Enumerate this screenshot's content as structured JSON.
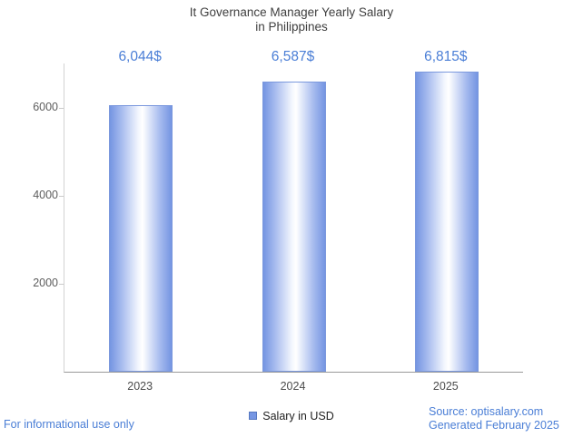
{
  "title": {
    "line1": "It Governance Manager Yearly Salary",
    "line2": "in Philippines"
  },
  "chart_data": {
    "type": "bar",
    "title": "It Governance Manager Yearly Salary in Philippines",
    "categories": [
      "2023",
      "2024",
      "2025"
    ],
    "series": [
      {
        "name": "Salary in USD",
        "values": [
          6044,
          6587,
          6815
        ]
      }
    ],
    "value_labels": [
      "6,044$",
      "6,587$",
      "6,815$"
    ],
    "xlabel": "",
    "ylabel": "",
    "ylim": [
      0,
      7000
    ],
    "yticks": [
      2000,
      4000,
      6000
    ],
    "grid": false,
    "legend": {
      "label": "Salary in USD",
      "position": "bottom"
    }
  },
  "footer": {
    "disclaimer": "For informational use only",
    "source": "Source: optisalary.com",
    "generated": "Generated February 2025"
  },
  "colors": {
    "bar": "#7696e3",
    "value_label": "#4a7ed6",
    "link_blue": "#4a7ed6",
    "title_text": "#3f3f3f"
  }
}
